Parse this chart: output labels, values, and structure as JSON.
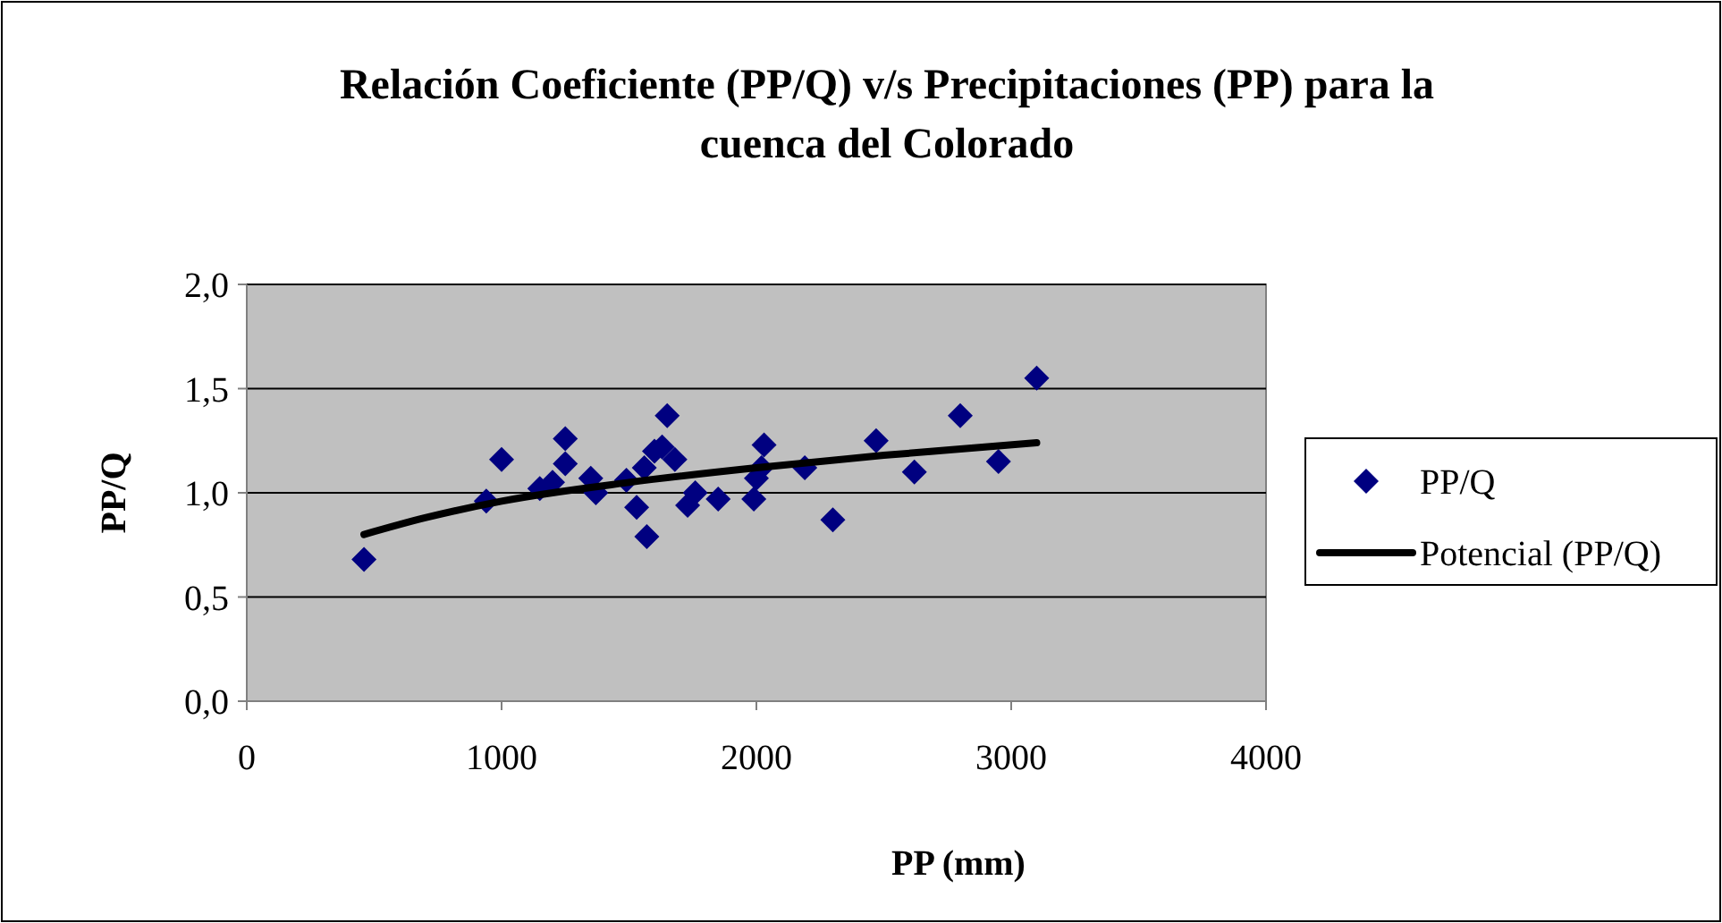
{
  "chart_data": {
    "type": "scatter",
    "title": "Relación Coeficiente (PP/Q) v/s Precipitaciones (PP) para la cuenca del Colorado",
    "xlabel": "PP (mm)",
    "ylabel": "PP/Q",
    "xlim": [
      0,
      4000
    ],
    "xticks": [
      0,
      1000,
      2000,
      3000,
      4000
    ],
    "ylim": [
      0,
      2
    ],
    "yticks": [
      {
        "value": 0,
        "label": "0,0"
      },
      {
        "value": 0.5,
        "label": "0,5"
      },
      {
        "value": 1,
        "label": "1,0"
      },
      {
        "value": 1.5,
        "label": "1,5"
      },
      {
        "value": 2,
        "label": "2,0"
      }
    ],
    "grid": "y",
    "legend": "right",
    "marker": "diamond",
    "series": [
      {
        "name": "PP/Q",
        "color": "#000080",
        "x": [
          460,
          940,
          1000,
          1150,
          1250,
          1250,
          1200,
          1350,
          1370,
          1490,
          1530,
          1570,
          1560,
          1600,
          1630,
          1650,
          1680,
          1730,
          1760,
          1850,
          1990,
          2000,
          2030,
          2020,
          2190,
          2300,
          2470,
          2620,
          2800,
          2950,
          3100
        ],
        "values": [
          0.68,
          0.96,
          1.16,
          1.02,
          1.26,
          1.14,
          1.05,
          1.07,
          1.0,
          1.06,
          0.93,
          0.79,
          1.12,
          1.2,
          1.22,
          1.37,
          1.16,
          0.94,
          1.0,
          0.97,
          0.97,
          1.07,
          1.23,
          1.12,
          1.12,
          0.87,
          1.25,
          1.1,
          1.37,
          1.15,
          1.55
        ]
      },
      {
        "name": "Potencial (PP/Q)",
        "type": "line",
        "color": "#000000",
        "marker": "none",
        "x": [
          460,
          700,
          1000,
          1500,
          2000,
          2500,
          3100
        ],
        "values": [
          0.8,
          0.88,
          0.96,
          1.05,
          1.12,
          1.18,
          1.24
        ]
      }
    ]
  }
}
